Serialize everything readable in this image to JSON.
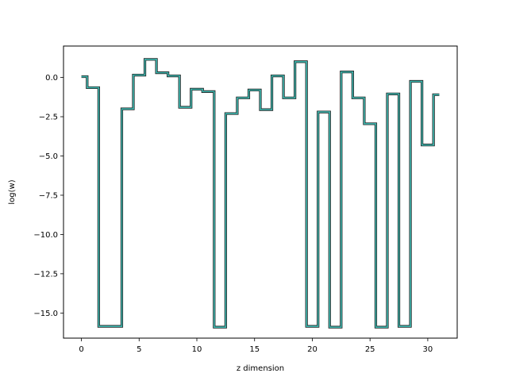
{
  "chart_data": {
    "type": "line",
    "drawstyle": "steps-mid",
    "title": "",
    "xlabel": "z dimension",
    "ylabel": "log(w)",
    "xlim": [
      -1.55,
      32.55
    ],
    "ylim": [
      -16.6,
      2.0
    ],
    "grid": false,
    "x_ticks": [
      0,
      5,
      10,
      15,
      20,
      25,
      30
    ],
    "y_ticks": [
      0.0,
      -2.5,
      -5.0,
      -7.5,
      -10.0,
      -12.5,
      -15.0
    ],
    "y_tick_labels": [
      "0.0",
      "−2.5",
      "−5.0",
      "−7.5",
      "−10.0",
      "−12.5",
      "−15.0"
    ],
    "colors": {
      "outer": "#1f1f1f",
      "inner": "#3fb8b0"
    },
    "x": [
      0,
      1,
      2,
      3,
      4,
      5,
      6,
      7,
      8,
      9,
      10,
      11,
      12,
      13,
      14,
      15,
      16,
      17,
      18,
      19,
      20,
      21,
      22,
      23,
      24,
      25,
      26,
      27,
      28,
      29,
      30,
      31
    ],
    "values": [
      0.05,
      -0.65,
      -15.85,
      -15.85,
      -2.0,
      0.15,
      1.15,
      0.3,
      0.1,
      -1.9,
      -0.75,
      -0.9,
      -15.9,
      -2.3,
      -1.3,
      -0.8,
      -2.05,
      0.1,
      -1.3,
      1.0,
      -15.85,
      -2.2,
      -15.9,
      0.35,
      -1.3,
      -2.95,
      -15.9,
      -1.05,
      -15.85,
      -0.25,
      -4.3,
      -1.1
    ]
  }
}
